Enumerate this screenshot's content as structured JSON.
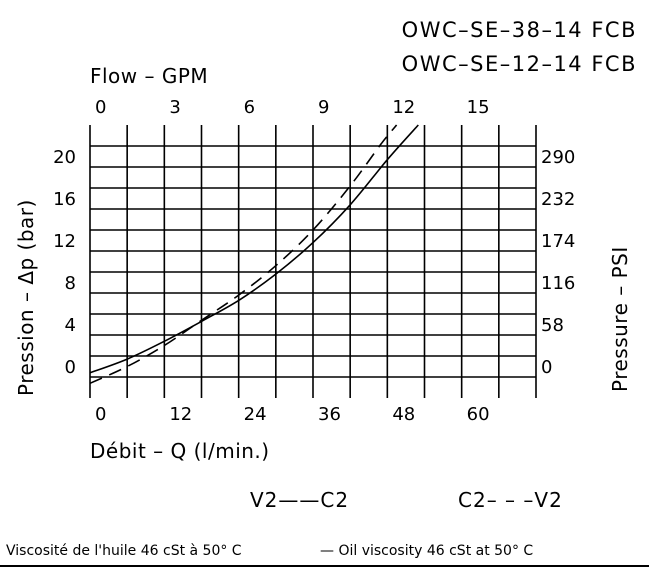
{
  "titles": [
    "OWC–SE–38–14 FCB",
    "OWC–SE–12–14 FCB"
  ],
  "footer": {
    "fr": "Viscosité de l'huile 46 cSt à 50° C",
    "en": "— Oil viscosity 46 cSt at 50° C"
  },
  "chart_data": {
    "type": "line",
    "grid": true,
    "xlabel": "Débit – Q (l/min.)",
    "xlabel_top": "Flow – GPM",
    "ylabel": "Pression – Δp (bar)",
    "ylabel_right": "Pressure – PSI",
    "xlim": [
      0,
      72
    ],
    "ylim": [
      -2,
      24
    ],
    "x_ticks": [
      0,
      12,
      24,
      36,
      48,
      60
    ],
    "x_ticks_top": [
      "0",
      "3",
      "6",
      "9",
      "12",
      "15"
    ],
    "y_ticks": [
      0,
      4,
      8,
      12,
      16,
      20
    ],
    "y_ticks_right": [
      "0",
      "58",
      "116",
      "174",
      "232",
      "290"
    ],
    "series": [
      {
        "name": "V2——C2",
        "style": "solid",
        "x": [
          0,
          6,
          12,
          18,
          24,
          30,
          36,
          42,
          48,
          53
        ],
        "y": [
          0.4,
          1.7,
          3.4,
          5.3,
          7.3,
          9.8,
          12.8,
          16.4,
          20.7,
          24.0
        ]
      },
      {
        "name": "C2– – –V2",
        "style": "dashed",
        "x": [
          0,
          6,
          12,
          18,
          24,
          30,
          36,
          42,
          47,
          49.5
        ],
        "y": [
          -0.6,
          1.0,
          3.0,
          5.4,
          7.8,
          10.6,
          14.0,
          18.2,
          22.2,
          24.0
        ]
      }
    ]
  }
}
